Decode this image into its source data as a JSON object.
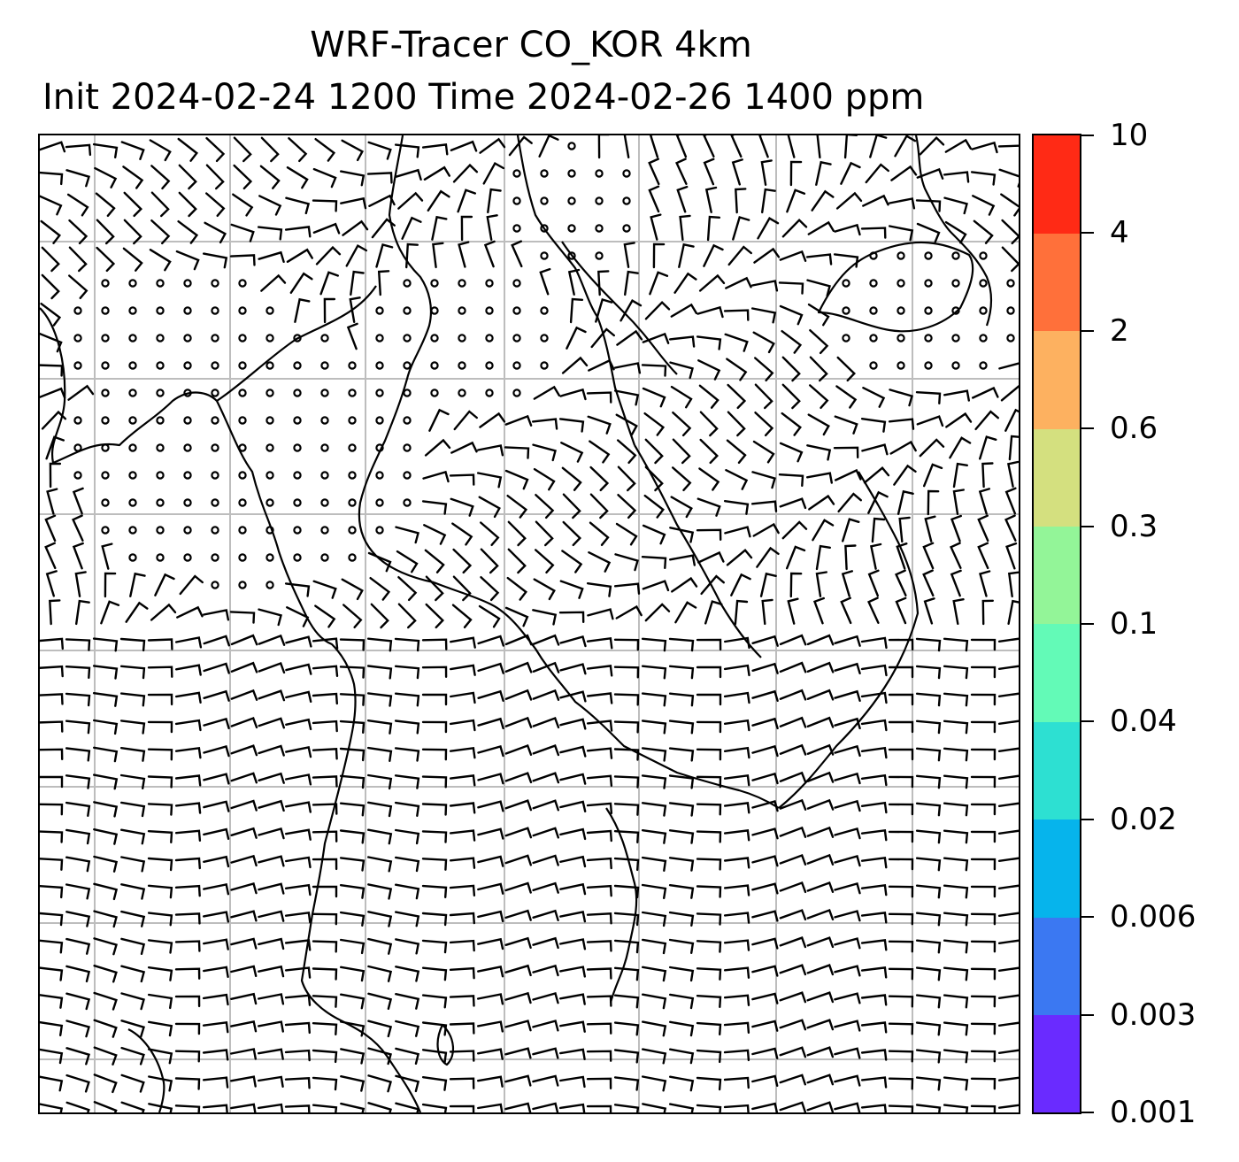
{
  "title": {
    "line1": "WRF-Tracer CO_KOR 4km",
    "line2": "Init 2024-02-24 1200 Time 2024-02-26 1400 ppm"
  },
  "colorbar": {
    "levels": [
      "0.001",
      "0.003",
      "0.006",
      "0.02",
      "0.04",
      "0.1",
      "0.3",
      "0.6",
      "2",
      "4",
      "10"
    ],
    "colors": [
      "#6a2bff",
      "#3b78f2",
      "#06b4ec",
      "#2de0d2",
      "#63fab7",
      "#93f598",
      "#d4e07f",
      "#fdb160",
      "#ff703a",
      "#ff2a15"
    ]
  },
  "map": {
    "gridline_color": "#bdbdbd",
    "barb_color": "#000000",
    "coastline_color": "#000000"
  }
}
